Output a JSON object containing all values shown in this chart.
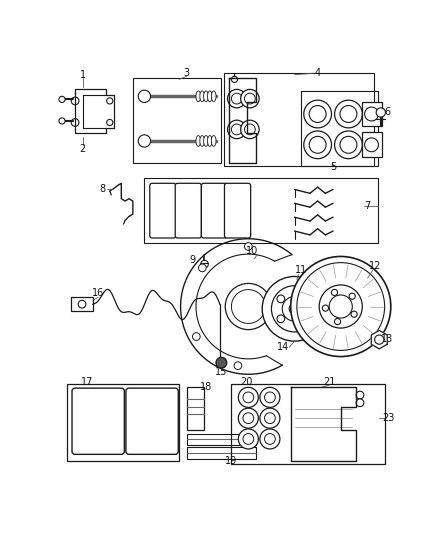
{
  "bg_color": "#ffffff",
  "line_color": "#1a1a1a",
  "gray": "#888888",
  "light_gray": "#cccccc",
  "font_size": 7,
  "label_color": "#111111",
  "figsize": [
    4.38,
    5.33
  ],
  "dpi": 100
}
